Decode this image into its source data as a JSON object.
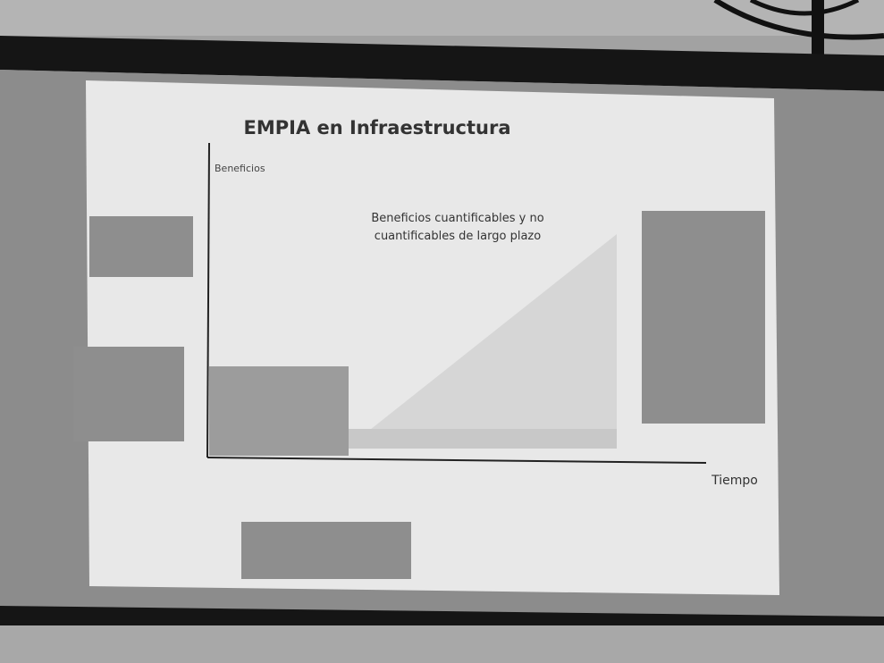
{
  "slide": {
    "title": "EMPIA  en Infraestructura",
    "y_axis_label": "Beneficios",
    "annotation_lines": [
      "Beneficios cuantificables y no",
      "cuantificables de largo plazo"
    ],
    "x_axis_label": "Tiempo"
  }
}
